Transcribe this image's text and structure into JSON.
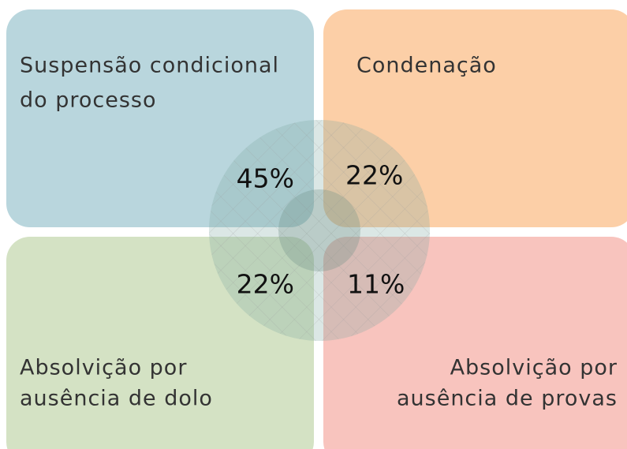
{
  "quadrants": [
    {
      "label": [
        "Suspensão condicional",
        "do processo"
      ],
      "value": "45%"
    },
    {
      "label": [
        "Condenação"
      ],
      "value": "22%"
    },
    {
      "label": [
        "Absolvição por",
        "ausência de dolo"
      ],
      "value": "22%"
    },
    {
      "label": [
        "Absolvição por",
        "ausência de provas"
      ],
      "value": "11%"
    }
  ]
}
